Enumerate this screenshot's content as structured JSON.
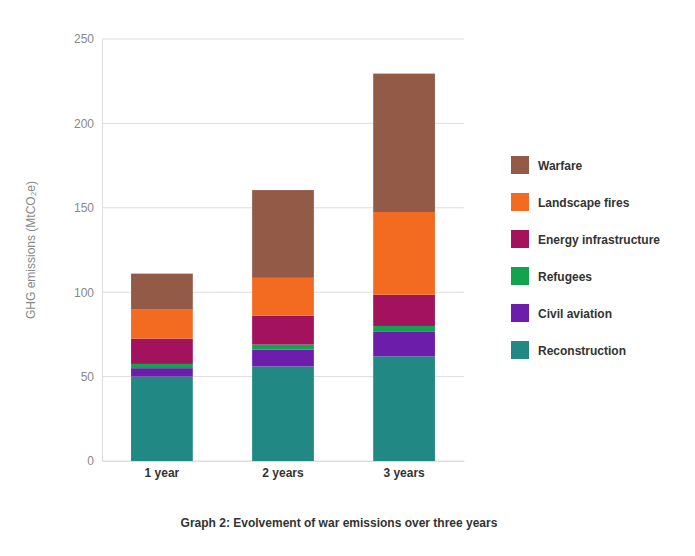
{
  "chart_data": {
    "type": "bar",
    "stacked": true,
    "grid": true,
    "legend": "right",
    "title": "Graph 2: Evolvement of war emissions over three years",
    "y_label": "GHG emissions (MtCO₂e)",
    "categories": [
      "1 year",
      "2 years",
      "3 years"
    ],
    "series": [
      {
        "name": "Reconstruction",
        "color": "#218883",
        "values": [
          50,
          56,
          62
        ]
      },
      {
        "name": "Civil aviation",
        "color": "#6c1eab",
        "values": [
          5,
          10,
          14.5
        ]
      },
      {
        "name": "Refugees",
        "color": "#12a34f",
        "values": [
          2.5,
          3,
          3.5
        ]
      },
      {
        "name": "Energy infrastructure",
        "color": "#a3125d",
        "values": [
          15,
          17,
          18.5
        ]
      },
      {
        "name": "Landscape fires",
        "color": "#f26b21",
        "values": [
          17.5,
          22.5,
          49
        ]
      },
      {
        "name": "Warfare",
        "color": "#935a48",
        "values": [
          21,
          52,
          82
        ]
      }
    ],
    "ylim": [
      0,
      250
    ],
    "yticks": [
      0,
      50,
      100,
      150,
      200,
      250
    ]
  }
}
